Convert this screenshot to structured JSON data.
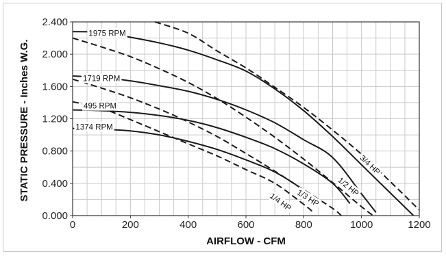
{
  "chart_data": {
    "type": "line",
    "xlabel": "AIRFLOW - CFM",
    "ylabel": "STATIC PRESSURE - Inches W.G.",
    "xlim": [
      0,
      1200
    ],
    "ylim": [
      0,
      2.4
    ],
    "grid": true,
    "x_major_ticks": [
      0,
      200,
      400,
      600,
      800,
      1000,
      1200
    ],
    "x_tick_labels": [
      "0",
      "200",
      "400",
      "600",
      "800",
      "1000",
      "1200"
    ],
    "y_major_ticks": [
      0,
      0.4,
      0.8,
      1.2,
      1.6,
      2.0,
      2.4
    ],
    "y_tick_labels": [
      "0.000",
      "0.400",
      "0.800",
      "1.200",
      "1.600",
      "2.000",
      "2.400"
    ],
    "series": [
      {
        "name": "1975 RPM",
        "style": "solid",
        "points": [
          [
            0,
            2.28
          ],
          [
            100,
            2.27
          ],
          [
            200,
            2.21
          ],
          [
            300,
            2.14
          ],
          [
            400,
            2.05
          ],
          [
            500,
            1.93
          ],
          [
            600,
            1.79
          ],
          [
            700,
            1.57
          ],
          [
            800,
            1.3
          ],
          [
            900,
            0.98
          ],
          [
            1000,
            0.63
          ],
          [
            1100,
            0.28
          ],
          [
            1180,
            0.0
          ]
        ],
        "label_at": [
          120,
          2.26
        ]
      },
      {
        "name": "1719 RPM",
        "style": "solid",
        "points": [
          [
            0,
            1.73
          ],
          [
            100,
            1.71
          ],
          [
            200,
            1.67
          ],
          [
            300,
            1.61
          ],
          [
            400,
            1.54
          ],
          [
            500,
            1.44
          ],
          [
            600,
            1.31
          ],
          [
            700,
            1.15
          ],
          [
            800,
            0.94
          ],
          [
            900,
            0.72
          ],
          [
            1000,
            0.27
          ],
          [
            1050,
            0.04
          ]
        ],
        "label_at": [
          100,
          1.7
        ]
      },
      {
        "name": "495 RPM",
        "style": "solid",
        "points": [
          [
            0,
            1.31
          ],
          [
            100,
            1.3
          ],
          [
            200,
            1.28
          ],
          [
            300,
            1.24
          ],
          [
            400,
            1.18
          ],
          [
            500,
            1.09
          ],
          [
            600,
            0.97
          ],
          [
            700,
            0.83
          ],
          [
            800,
            0.64
          ],
          [
            900,
            0.4
          ],
          [
            960,
            0.15
          ]
        ],
        "label_at": [
          95,
          1.36
        ]
      },
      {
        "name": "1374 RPM",
        "style": "solid",
        "points": [
          [
            0,
            1.08
          ],
          [
            100,
            1.07
          ],
          [
            200,
            1.05
          ],
          [
            300,
            1.0
          ],
          [
            400,
            0.92
          ],
          [
            500,
            0.82
          ],
          [
            600,
            0.69
          ],
          [
            700,
            0.54
          ],
          [
            800,
            0.31
          ],
          [
            840,
            0.12
          ]
        ],
        "label_at": [
          75,
          1.1
        ]
      },
      {
        "name": "3/4 HP",
        "style": "dashed",
        "points": [
          [
            285,
            2.4
          ],
          [
            400,
            2.26
          ],
          [
            500,
            2.04
          ],
          [
            600,
            1.83
          ],
          [
            700,
            1.59
          ],
          [
            800,
            1.34
          ],
          [
            900,
            1.06
          ],
          [
            1000,
            0.76
          ],
          [
            1100,
            0.42
          ],
          [
            1200,
            0.07
          ]
        ],
        "label_at": [
          1030,
          0.63
        ]
      },
      {
        "name": "1/2 HP",
        "style": "dashed",
        "points": [
          [
            0,
            2.2
          ],
          [
            100,
            2.09
          ],
          [
            200,
            1.97
          ],
          [
            300,
            1.82
          ],
          [
            400,
            1.65
          ],
          [
            500,
            1.45
          ],
          [
            600,
            1.22
          ],
          [
            700,
            0.97
          ],
          [
            800,
            0.7
          ],
          [
            900,
            0.41
          ],
          [
            1000,
            0.11
          ],
          [
            1040,
            0.0
          ]
        ],
        "label_at": [
          955,
          0.36
        ]
      },
      {
        "name": "1/3 HP",
        "style": "dashed",
        "points": [
          [
            0,
            1.69
          ],
          [
            100,
            1.58
          ],
          [
            200,
            1.46
          ],
          [
            300,
            1.32
          ],
          [
            400,
            1.16
          ],
          [
            500,
            0.98
          ],
          [
            600,
            0.77
          ],
          [
            700,
            0.55
          ],
          [
            800,
            0.32
          ],
          [
            900,
            0.09
          ],
          [
            930,
            0.0
          ]
        ],
        "label_at": [
          815,
          0.22
        ]
      },
      {
        "name": "1/4 HP",
        "style": "dashed",
        "points": [
          [
            0,
            1.41
          ],
          [
            100,
            1.33
          ],
          [
            200,
            1.19
          ],
          [
            300,
            1.04
          ],
          [
            400,
            0.89
          ],
          [
            500,
            0.74
          ],
          [
            600,
            0.57
          ],
          [
            700,
            0.4
          ],
          [
            800,
            0.14
          ],
          [
            830,
            0.05
          ]
        ],
        "label_at": [
          720,
          0.17
        ]
      }
    ]
  }
}
